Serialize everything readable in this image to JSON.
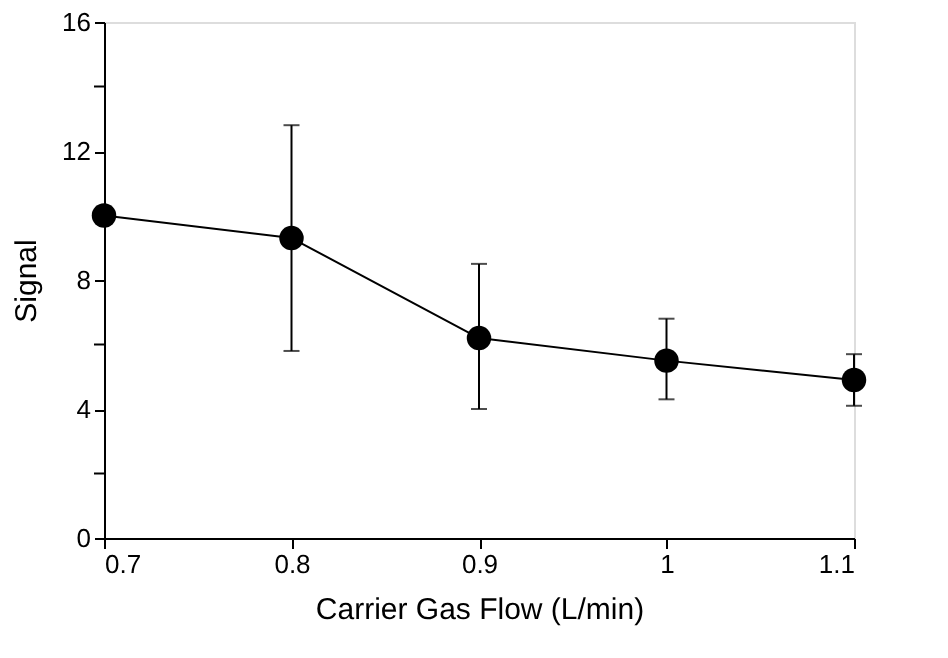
{
  "chart_data": {
    "type": "line",
    "xlabel": "Carrier Gas Flow (L/min)",
    "ylabel": "Signal",
    "x": [
      0.7,
      0.8,
      0.9,
      1.0,
      1.1
    ],
    "series": [
      {
        "color": "#000000",
        "values": [
          10.0,
          9.3,
          6.2,
          5.5,
          4.9
        ],
        "errors": [
          null,
          [
            5.8,
            12.8
          ],
          [
            4.0,
            8.5
          ],
          [
            4.3,
            6.8
          ],
          [
            4.1,
            5.7
          ]
        ]
      }
    ],
    "xlim": [
      0.7,
      1.1
    ],
    "xticks": [
      0.7,
      0.8,
      0.9,
      1,
      1.1
    ],
    "ylim": [
      0,
      16
    ],
    "yticks": [
      0,
      {
        "value": 2,
        "label": null
      },
      4,
      {
        "value": 6,
        "label": null
      },
      8,
      {
        "value": 10,
        "label": null
      },
      12,
      {
        "value": 14,
        "label": null
      },
      16
    ],
    "marker": "circle",
    "line_style": "solid",
    "grid": false
  }
}
